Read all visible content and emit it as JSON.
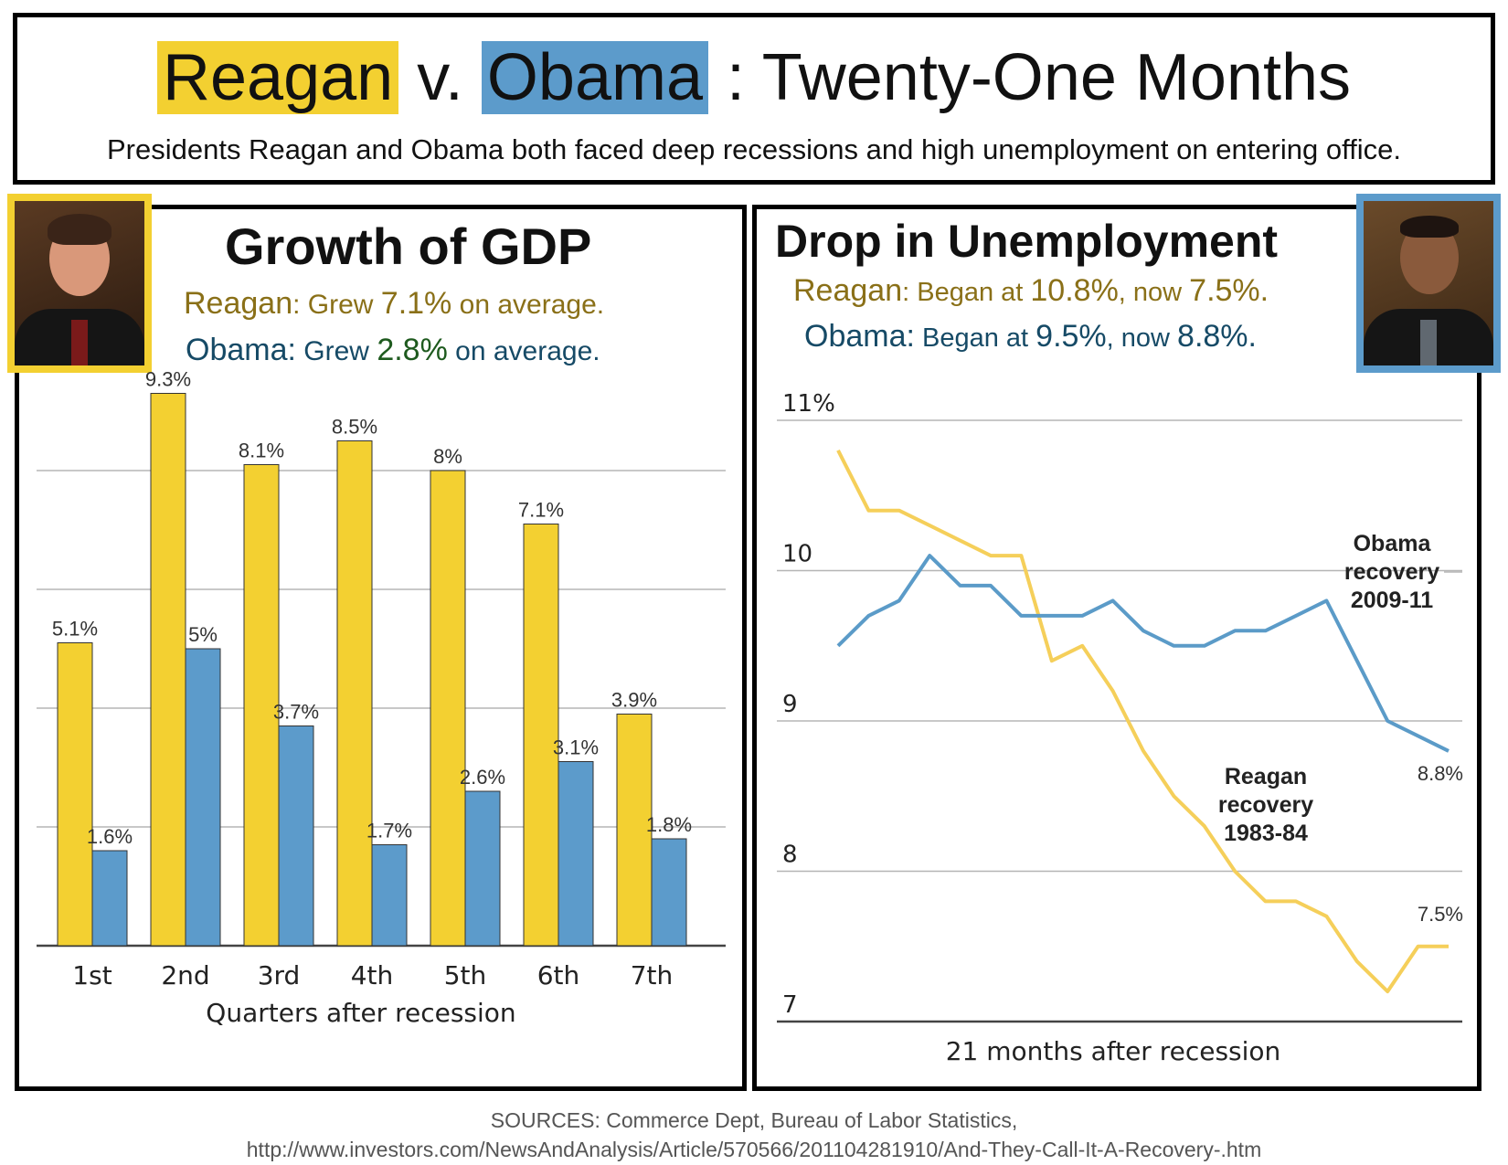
{
  "header": {
    "title_reagan": "Reagan",
    "title_v": "v.",
    "title_obama": "Obama",
    "title_rest": ": Twenty-One Months",
    "subtitle": "Presidents Reagan and Obama both faced deep recessions and high unemployment on entering office."
  },
  "gdp_panel": {
    "title": "Growth of GDP",
    "reagan_name": "Reagan",
    "reagan_text_a": ": Grew ",
    "reagan_value": "7.1%",
    "reagan_text_b": " on average.",
    "obama_name": "Obama:",
    "obama_text_a": " Grew ",
    "obama_value": "2.8%",
    "obama_text_b": " on average."
  },
  "unemployment_panel": {
    "title": "Drop in Unemployment",
    "reagan_name": "Reagan",
    "reagan_text_a": ": Began at ",
    "reagan_start": "10.8%",
    "reagan_text_b": ", now ",
    "reagan_now": "7.5%",
    "reagan_text_c": ".",
    "obama_name": "Obama:",
    "obama_text_a": " Began at ",
    "obama_start": "9.5%",
    "obama_text_b": ", now ",
    "obama_now": "8.8%",
    "obama_text_c": "."
  },
  "colors": {
    "reagan": "#f3d031",
    "obama": "#5c9bcb",
    "reagan_line": "#f5cf5a",
    "obama_line": "#5b9bc8",
    "gridline": "#b5b5b5"
  },
  "chart_data": [
    {
      "type": "bar",
      "categories": [
        "1st",
        "2nd",
        "3rd",
        "4th",
        "5th",
        "6th",
        "7th"
      ],
      "series": [
        {
          "values": [
            5.1,
            9.3,
            8.1,
            8.5,
            8.0,
            7.1,
            3.9
          ],
          "labels": [
            "5.1%",
            "9.3%",
            "8.1%",
            "8.5%",
            "8%",
            "7.1%",
            "3.9%"
          ]
        },
        {
          "values": [
            1.6,
            5.0,
            3.7,
            1.7,
            2.6,
            3.1,
            1.8
          ],
          "labels": [
            "1.6%",
            "5%",
            "3.7%",
            "1.7%",
            "2.6%",
            "3.1%",
            "1.8%"
          ]
        }
      ],
      "xlabel": "Quarters after recession",
      "ylim": [
        0,
        10
      ],
      "grid": true
    },
    {
      "type": "line",
      "x": [
        1,
        2,
        3,
        4,
        5,
        6,
        7,
        8,
        9,
        10,
        11,
        12,
        13,
        14,
        15,
        16,
        17,
        18,
        19,
        20,
        21
      ],
      "series": [
        {
          "name": "Reagan recovery 1983-84",
          "values": [
            10.8,
            10.4,
            10.4,
            10.3,
            10.2,
            10.1,
            10.1,
            9.4,
            9.5,
            9.2,
            8.8,
            8.5,
            8.3,
            8.0,
            7.8,
            7.8,
            7.7,
            7.4,
            7.2,
            7.5,
            7.5
          ],
          "end_label": "7.5%"
        },
        {
          "name": "Obama recovery 2009-11",
          "values": [
            9.5,
            9.7,
            9.8,
            10.1,
            9.9,
            9.9,
            9.7,
            9.7,
            9.7,
            9.8,
            9.6,
            9.5,
            9.5,
            9.6,
            9.6,
            9.7,
            9.8,
            9.4,
            9.0,
            8.9,
            8.8
          ],
          "end_label": "8.8%"
        }
      ],
      "xlabel": "21 months after recession",
      "yticks": [
        "7",
        "8",
        "9",
        "10",
        "11%"
      ],
      "ylim": [
        7,
        11
      ],
      "grid": true
    }
  ],
  "sources": {
    "line1": "SOURCES: Commerce Dept, Bureau of Labor Statistics,",
    "line2": "http://www.investors.com/NewsAndAnalysis/Article/570566/201104281910/And-They-Call-It-A-Recovery-.htm"
  }
}
